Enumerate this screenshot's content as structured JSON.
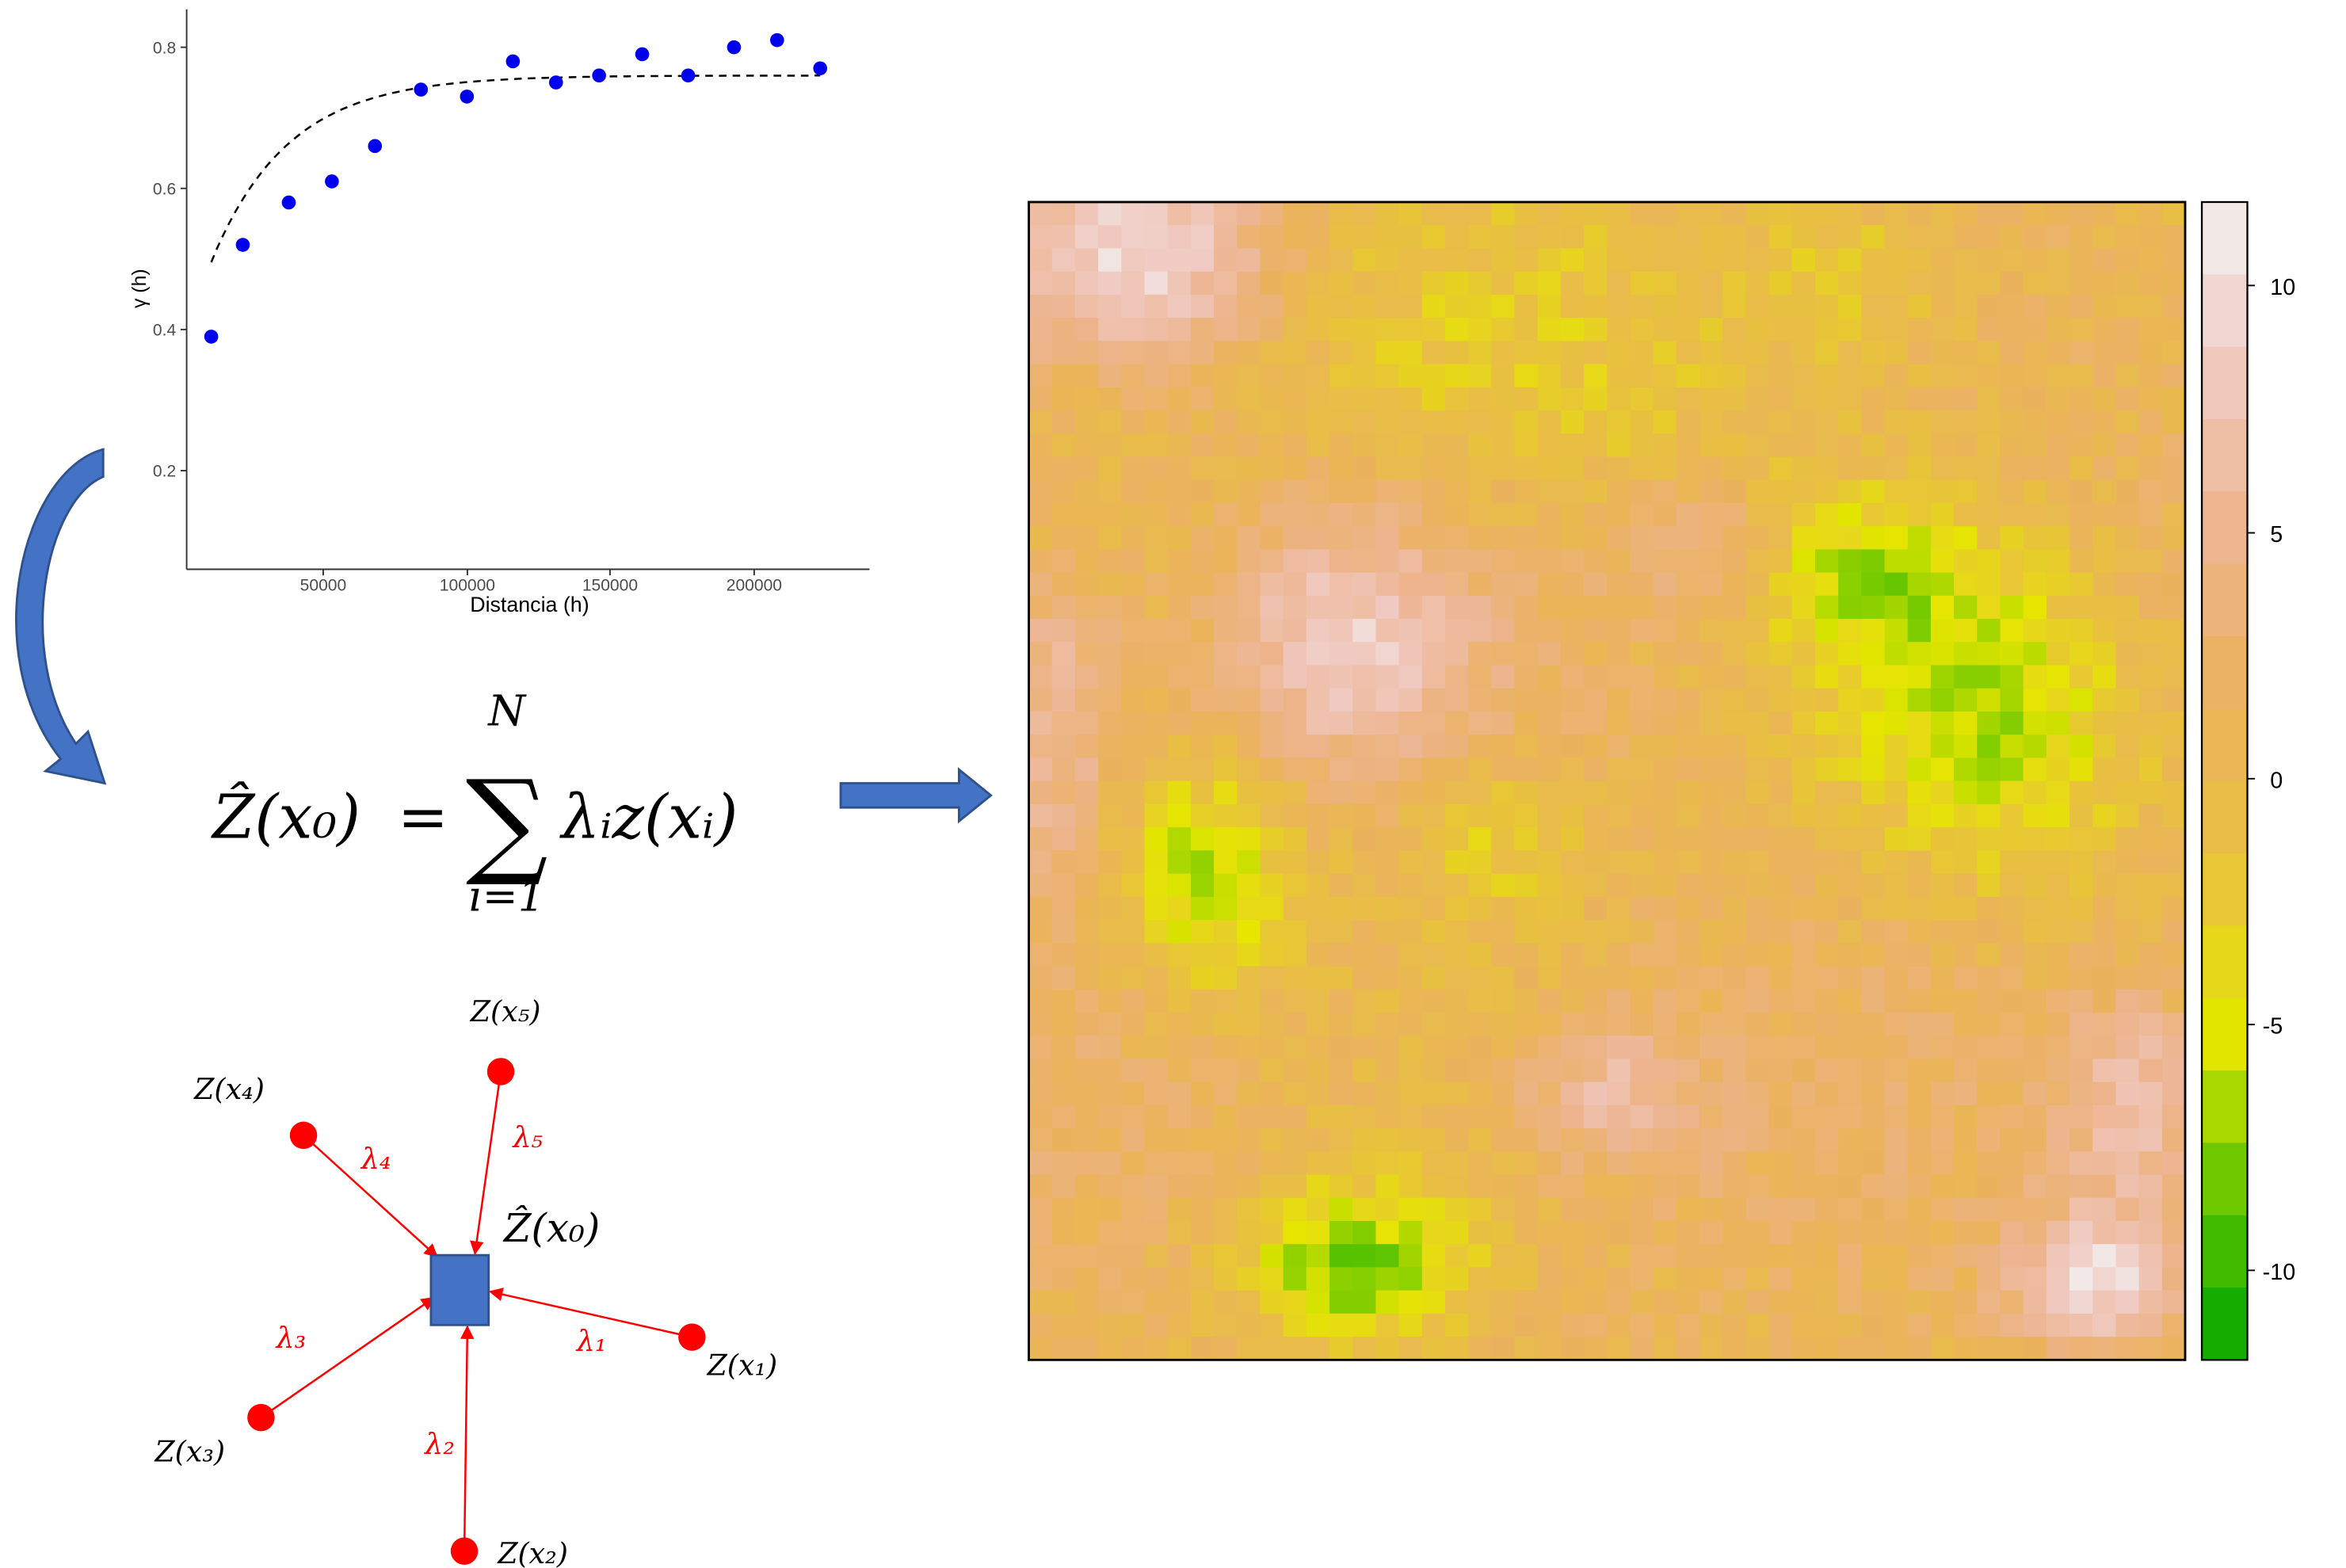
{
  "variogram": {
    "ylabel": "γ (h)",
    "xlabel": "Distancia (h)",
    "y_ticks": [
      "0.2",
      "0.4",
      "0.6",
      "0.8"
    ],
    "x_ticks": [
      "50000",
      "100000",
      "150000",
      "200000"
    ],
    "point_color": "#0000ee",
    "chart_data": {
      "type": "scatter",
      "xlim": [
        0,
        240000
      ],
      "ylim": [
        0.07,
        0.85
      ],
      "x": [
        11000,
        22000,
        38000,
        53000,
        68000,
        84000,
        100000,
        116000,
        131000,
        146000,
        161000,
        177000,
        193000,
        208000,
        223000
      ],
      "y": [
        0.39,
        0.52,
        0.58,
        0.61,
        0.66,
        0.74,
        0.73,
        0.78,
        0.75,
        0.76,
        0.79,
        0.76,
        0.8,
        0.81,
        0.77
      ],
      "fit": {
        "model": "exponential",
        "nugget": 0.36,
        "sill": 0.76,
        "range": 80000
      }
    }
  },
  "formula": {
    "lhs": "Ẑ(x₀)",
    "equals": "=",
    "sum_top": "N",
    "sum_sign": "∑",
    "sum_bottom": "i=1",
    "rhs": "λᵢz(xᵢ)"
  },
  "weights_diagram": {
    "target_label": "Ẑ(x₀)",
    "target_color": "#4472c4",
    "point_color": "#ff0000",
    "arrow_color": "#ff0000",
    "points": [
      {
        "label": "Z(x₁)",
        "lambda": "λ₁"
      },
      {
        "label": "Z(x₂)",
        "lambda": "λ₂"
      },
      {
        "label": "Z(x₃)",
        "lambda": "λ₃"
      },
      {
        "label": "Z(x₄)",
        "lambda": "λ₄"
      },
      {
        "label": "Z(x₅)",
        "lambda": "λ₅"
      }
    ]
  },
  "arrows": {
    "color": "#4472c4",
    "curved": "curved-arrow",
    "right": "right-arrow"
  },
  "kriging_map": {
    "type": "heatmap",
    "grid": {
      "cols": 50,
      "rows": 50
    },
    "value_range": [
      -12,
      12
    ],
    "colorbar_ticks": [
      "10",
      "5",
      "0",
      "-5",
      "-10"
    ],
    "colorbar_levels": [
      12,
      10.5,
      9,
      7.5,
      6,
      4.5,
      3,
      1.5,
      0,
      -1.5,
      -3,
      -4.5,
      -6,
      -7.5,
      -9,
      -10.5,
      -12
    ],
    "color_stops": [
      "#00a600",
      "#63c600",
      "#e6e600",
      "#e8c040",
      "#ebb25e",
      "#edb48e",
      "#f0c9c0",
      "#f2f2f2"
    ],
    "features": [
      {
        "cx": 0.15,
        "cy": 0.58,
        "sx": 0.06,
        "sy": 0.07,
        "amp": -8
      },
      {
        "cx": 0.28,
        "cy": 0.92,
        "sx": 0.07,
        "sy": 0.05,
        "amp": -9
      },
      {
        "cx": 0.84,
        "cy": 0.45,
        "sx": 0.1,
        "sy": 0.1,
        "amp": -7
      },
      {
        "cx": 0.72,
        "cy": 0.32,
        "sx": 0.07,
        "sy": 0.05,
        "amp": -5
      },
      {
        "cx": 0.42,
        "cy": 0.15,
        "sx": 0.15,
        "sy": 0.1,
        "amp": -4
      },
      {
        "cx": 0.4,
        "cy": 0.55,
        "sx": 0.06,
        "sy": 0.05,
        "amp": -4
      },
      {
        "cx": 0.7,
        "cy": 0.05,
        "sx": 0.08,
        "sy": 0.06,
        "amp": -4
      },
      {
        "cx": 0.1,
        "cy": 0.05,
        "sx": 0.08,
        "sy": 0.06,
        "amp": 8
      },
      {
        "cx": 0.27,
        "cy": 0.38,
        "sx": 0.08,
        "sy": 0.08,
        "amp": 7
      },
      {
        "cx": 0.02,
        "cy": 0.45,
        "sx": 0.05,
        "sy": 0.1,
        "amp": 6
      },
      {
        "cx": 0.5,
        "cy": 0.77,
        "sx": 0.06,
        "sy": 0.05,
        "amp": 6
      },
      {
        "cx": 0.92,
        "cy": 0.93,
        "sx": 0.05,
        "sy": 0.04,
        "amp": 9
      },
      {
        "cx": 0.96,
        "cy": 0.78,
        "sx": 0.05,
        "sy": 0.07,
        "amp": 7
      },
      {
        "cx": 0.58,
        "cy": 0.3,
        "sx": 0.05,
        "sy": 0.04,
        "amp": 5
      }
    ]
  }
}
